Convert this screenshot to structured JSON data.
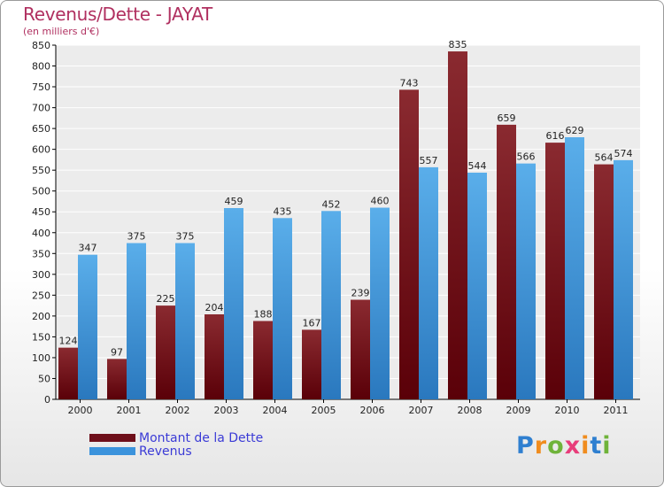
{
  "colors": {
    "dette": "#6e0f1a",
    "revenus": "#3b93dc",
    "title": "#b03060",
    "legend_text": "#3b3bd6"
  },
  "legend": {
    "dette_label": "Montant de la Dette",
    "revenus_label": "Revenus"
  },
  "logo": {
    "letters": [
      "P",
      "r",
      "o",
      "x",
      "i",
      "t",
      "i"
    ],
    "letter_colors": [
      "#2f7fd0",
      "#f08c1e",
      "#6fb33a",
      "#e83d7a",
      "#f08c1e",
      "#2f7fd0",
      "#6fb33a"
    ]
  },
  "chart_data": {
    "type": "bar",
    "title": "Revenus/Dette - JAYAT",
    "subtitle": "(en milliers d'€)",
    "xlabel": "",
    "ylabel": "",
    "ylim": [
      0,
      850
    ],
    "ytick_step": 50,
    "grid": true,
    "legend_position": "bottom-left",
    "categories": [
      "2000",
      "2001",
      "2002",
      "2003",
      "2004",
      "2005",
      "2006",
      "2007",
      "2008",
      "2009",
      "2010",
      "2011"
    ],
    "series": [
      {
        "name": "Montant de la Dette",
        "values": [
          124,
          97,
          225,
          204,
          188,
          167,
          239,
          743,
          835,
          659,
          616,
          564
        ]
      },
      {
        "name": "Revenus",
        "values": [
          347,
          375,
          375,
          459,
          435,
          452,
          460,
          557,
          544,
          566,
          629,
          574
        ]
      }
    ]
  }
}
